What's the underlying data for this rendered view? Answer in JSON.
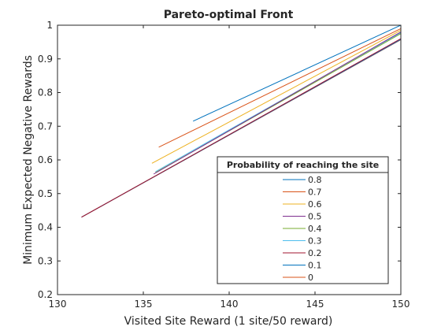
{
  "chart_data": {
    "type": "line",
    "title": "Pareto-optimal Front",
    "xlabel": "Visited Site Reward (1 site/50 reward)",
    "ylabel": "Minimum Expected Negative Rewards",
    "xlim": [
      130,
      150
    ],
    "ylim": [
      0.2,
      1.0
    ],
    "xticks": [
      "130",
      "135",
      "140",
      "145",
      "150"
    ],
    "yticks": [
      "0.2",
      "0.3",
      "0.4",
      "0.5",
      "0.6",
      "0.7",
      "0.8",
      "0.9",
      "1"
    ],
    "grid": false,
    "legend": {
      "title": "Probability of reaching the site",
      "placement": "bottom-right"
    },
    "series": [
      {
        "name": "0.8",
        "color": "#0072BD",
        "x": [
          137.9,
          150
        ],
        "y": [
          0.715,
          1.0
        ]
      },
      {
        "name": "0.7",
        "color": "#D95319",
        "x": [
          135.9,
          150
        ],
        "y": [
          0.638,
          0.99
        ]
      },
      {
        "name": "0.6",
        "color": "#EDB120",
        "x": [
          135.5,
          150
        ],
        "y": [
          0.59,
          0.985
        ]
      },
      {
        "name": "0.5",
        "color": "#7E2F8E",
        "x": [
          135.6,
          150
        ],
        "y": [
          0.558,
          0.98
        ]
      },
      {
        "name": "0.4",
        "color": "#77AC30",
        "x": [
          135.7,
          150
        ],
        "y": [
          0.562,
          0.975
        ]
      },
      {
        "name": "0.3",
        "color": "#4DBEEE",
        "x": [
          135.7,
          150
        ],
        "y": [
          0.565,
          0.978
        ]
      },
      {
        "name": "0.2",
        "color": "#A2142F",
        "x": [
          131.4,
          150
        ],
        "y": [
          0.43,
          0.96
        ]
      },
      {
        "name": "0.1",
        "color": "#0072BD",
        "x": [
          131.4,
          150
        ],
        "y": [
          0.43,
          0.958
        ]
      },
      {
        "name": "0",
        "color": "#D95319",
        "x": [
          131.4,
          150
        ],
        "y": [
          0.43,
          0.957
        ]
      }
    ]
  }
}
